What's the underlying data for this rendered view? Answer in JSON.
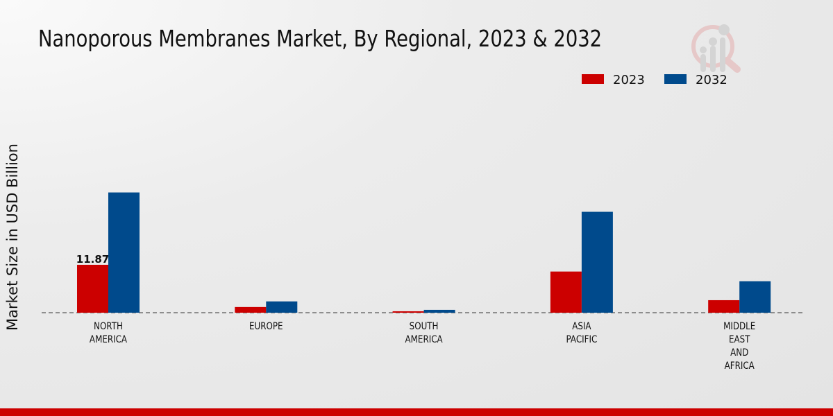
{
  "chart_data": {
    "type": "bar",
    "title": "Nanoporous Membranes Market, By Regional, 2023 & 2032",
    "xlabel": "",
    "ylabel": "Market Size in USD Billion",
    "categories": [
      [
        "NORTH",
        "AMERICA"
      ],
      [
        "EUROPE"
      ],
      [
        "SOUTH",
        "AMERICA"
      ],
      [
        "ASIA",
        "PACIFIC"
      ],
      [
        "MIDDLE",
        "EAST",
        "AND",
        "AFRICA"
      ]
    ],
    "series": [
      {
        "name": "2023",
        "color": "#cc0000",
        "values": [
          11.87,
          1.4,
          0.35,
          10.2,
          3.1
        ]
      },
      {
        "name": "2032",
        "color": "#004a8c",
        "values": [
          29.8,
          2.8,
          0.7,
          25.0,
          7.8
        ]
      }
    ],
    "data_labels": [
      {
        "series": 0,
        "index": 0,
        "text": "11.87"
      }
    ],
    "legend": "top-right",
    "grid": false
  }
}
